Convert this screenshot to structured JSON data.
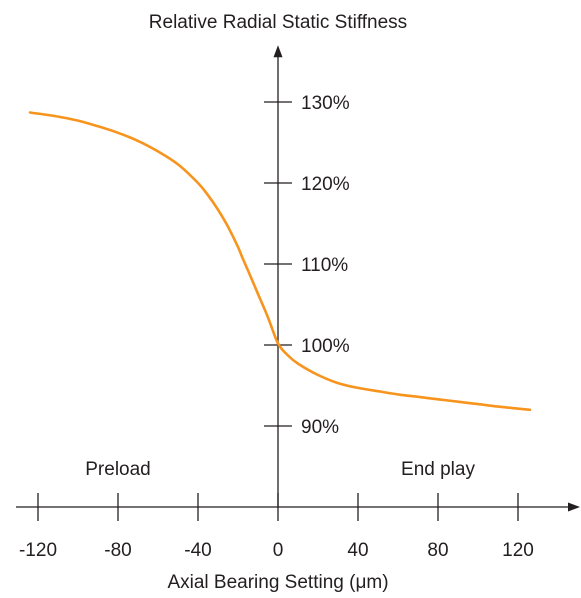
{
  "chart_data": {
    "type": "line",
    "title": "Relative Radial Static Stiffness",
    "xlabel": "Axial Bearing Setting (μm)",
    "ylabel": "",
    "x_ticks": [
      "-120",
      "-80",
      "-40",
      "0",
      "40",
      "80",
      "120"
    ],
    "y_ticks": [
      "90%",
      "100%",
      "110%",
      "120%",
      "130%"
    ],
    "xlim": [
      -131,
      151
    ],
    "ylim": [
      80,
      137
    ],
    "annotations": {
      "left_region": "Preload",
      "right_region": "End play"
    },
    "series": [
      {
        "color": "#f7941d",
        "x": [
          -124,
          -110,
          -100,
          -90,
          -80,
          -70,
          -60,
          -50,
          -40,
          -35,
          -30,
          -25,
          -20,
          -18,
          -15,
          -10,
          -5,
          0,
          5,
          10,
          20,
          30,
          40,
          50,
          60,
          70,
          80,
          90,
          100,
          110,
          126
        ],
        "y": [
          128.7,
          128.2,
          127.7,
          127.0,
          126.2,
          125.2,
          123.9,
          122.3,
          120.0,
          118.5,
          116.7,
          114.6,
          112.1,
          110.9,
          109.2,
          106.3,
          103.4,
          100.2,
          98.7,
          97.7,
          96.3,
          95.3,
          94.7,
          94.3,
          93.9,
          93.6,
          93.3,
          93.0,
          92.7,
          92.4,
          92.0
        ]
      }
    ],
    "grid": false
  }
}
